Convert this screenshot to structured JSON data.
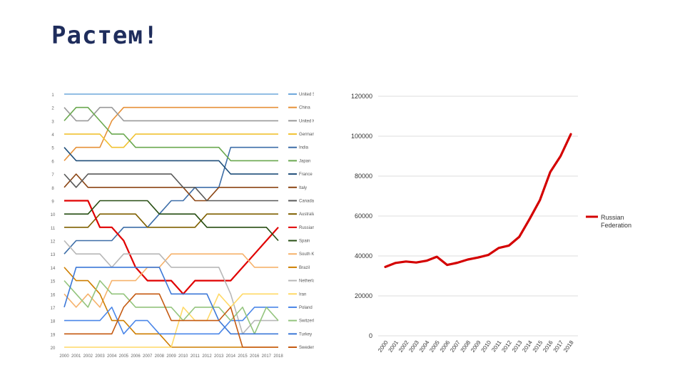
{
  "slide": {
    "title": "Растем!"
  },
  "chart_data": [
    {
      "type": "line",
      "title": "",
      "chart_subtype": "bump chart (rank by year)",
      "x": [
        "2000",
        "2001",
        "2002",
        "2003",
        "2004",
        "2005",
        "2006",
        "2007",
        "2008",
        "2009",
        "2010",
        "2011",
        "2012",
        "2013",
        "2014",
        "2015",
        "2016",
        "2017",
        "2018"
      ],
      "rank_labels": [
        "1",
        "2",
        "3",
        "4",
        "5",
        "6",
        "7",
        "8",
        "9",
        "10",
        "11",
        "12",
        "13",
        "14",
        "15",
        "16",
        "17",
        "18",
        "19",
        "20"
      ],
      "ylim": [
        1,
        20
      ],
      "series": [
        {
          "name": "United States",
          "color": "#6fa8dc",
          "values": [
            1,
            1,
            1,
            1,
            1,
            1,
            1,
            1,
            1,
            1,
            1,
            1,
            1,
            1,
            1,
            1,
            1,
            1,
            1
          ]
        },
        {
          "name": "China",
          "color": "#e69138",
          "values": [
            6,
            5,
            5,
            5,
            3,
            2,
            2,
            2,
            2,
            2,
            2,
            2,
            2,
            2,
            2,
            2,
            2,
            2,
            2
          ]
        },
        {
          "name": "United Kingdom",
          "color": "#999999",
          "values": [
            2,
            3,
            3,
            2,
            2,
            3,
            3,
            3,
            3,
            3,
            3,
            3,
            3,
            3,
            3,
            3,
            3,
            3,
            3
          ]
        },
        {
          "name": "Germany",
          "color": "#f1c232",
          "values": [
            4,
            4,
            4,
            4,
            5,
            5,
            4,
            4,
            4,
            4,
            4,
            4,
            4,
            4,
            4,
            4,
            4,
            4,
            4
          ]
        },
        {
          "name": "India",
          "color": "#3d6ea8",
          "values": [
            13,
            12,
            12,
            12,
            12,
            11,
            11,
            11,
            10,
            9,
            9,
            8,
            8,
            8,
            5,
            5,
            5,
            5,
            5
          ]
        },
        {
          "name": "Japan",
          "color": "#6aa84f",
          "values": [
            3,
            2,
            2,
            3,
            4,
            4,
            5,
            5,
            5,
            5,
            5,
            5,
            5,
            5,
            6,
            6,
            6,
            6,
            6
          ]
        },
        {
          "name": "France",
          "color": "#1f4e79",
          "values": [
            5,
            6,
            6,
            6,
            6,
            6,
            6,
            6,
            6,
            6,
            6,
            6,
            6,
            6,
            7,
            7,
            7,
            7,
            7
          ]
        },
        {
          "name": "Italy",
          "color": "#8b4513",
          "values": [
            8,
            7,
            8,
            8,
            8,
            8,
            8,
            8,
            8,
            8,
            8,
            9,
            9,
            8,
            8,
            8,
            8,
            8,
            8
          ]
        },
        {
          "name": "Canada",
          "color": "#595959",
          "values": [
            7,
            8,
            7,
            7,
            7,
            7,
            7,
            7,
            7,
            7,
            8,
            8,
            9,
            9,
            9,
            9,
            9,
            9,
            9
          ]
        },
        {
          "name": "Australia",
          "color": "#7f6000",
          "values": [
            11,
            11,
            11,
            10,
            10,
            10,
            10,
            11,
            11,
            11,
            11,
            11,
            10,
            10,
            10,
            10,
            10,
            10,
            10
          ]
        },
        {
          "name": "Russian Federation",
          "color": "#e00000",
          "values": [
            9,
            9,
            9,
            11,
            11,
            12,
            14,
            15,
            15,
            15,
            16,
            15,
            15,
            15,
            15,
            14,
            13,
            12,
            11
          ]
        },
        {
          "name": "Spain",
          "color": "#274e13",
          "values": [
            10,
            10,
            10,
            9,
            9,
            9,
            9,
            9,
            10,
            10,
            10,
            10,
            11,
            11,
            11,
            11,
            11,
            11,
            12
          ]
        },
        {
          "name": "South Korea",
          "color": "#f6b26b",
          "values": [
            16,
            17,
            16,
            17,
            15,
            15,
            15,
            14,
            14,
            13,
            13,
            13,
            13,
            13,
            13,
            13,
            14,
            14,
            14
          ]
        },
        {
          "name": "Brazil",
          "color": "#ce7e00",
          "values": [
            14,
            15,
            15,
            16,
            18,
            18,
            19,
            19,
            19,
            20,
            20,
            20,
            20,
            20,
            20,
            20,
            20,
            20,
            20
          ]
        },
        {
          "name": "Netherlands",
          "color": "#b7b7b7",
          "values": [
            12,
            13,
            13,
            13,
            14,
            13,
            13,
            13,
            13,
            14,
            14,
            14,
            14,
            14,
            16,
            19,
            18,
            18,
            18
          ]
        },
        {
          "name": "Iran",
          "color": "#ffd966",
          "values": [
            20,
            20,
            20,
            20,
            20,
            20,
            20,
            20,
            20,
            20,
            17,
            18,
            18,
            16,
            17,
            16,
            16,
            16,
            16
          ]
        },
        {
          "name": "Poland",
          "color": "#4a86e8",
          "values": [
            18,
            18,
            18,
            18,
            17,
            19,
            18,
            18,
            19,
            19,
            19,
            19,
            19,
            19,
            18,
            18,
            17,
            17,
            17
          ]
        },
        {
          "name": "Switzerland",
          "color": "#93c47d",
          "values": [
            15,
            16,
            17,
            15,
            16,
            16,
            17,
            17,
            17,
            17,
            18,
            17,
            17,
            17,
            18,
            17,
            19,
            17,
            18
          ]
        },
        {
          "name": "Turkey",
          "color": "#3c78d8",
          "values": [
            17,
            14,
            14,
            14,
            14,
            14,
            14,
            14,
            14,
            16,
            16,
            16,
            16,
            18,
            19,
            19,
            19,
            19,
            19
          ]
        },
        {
          "name": "Sweden",
          "color": "#c55a11",
          "values": [
            19,
            19,
            19,
            19,
            19,
            17,
            16,
            16,
            16,
            18,
            18,
            18,
            18,
            18,
            17,
            20,
            20,
            20,
            20
          ]
        }
      ]
    },
    {
      "type": "line",
      "title": "",
      "x": [
        "2000",
        "2001",
        "2002",
        "2003",
        "2004",
        "2005",
        "2006",
        "2007",
        "2008",
        "2009",
        "2010",
        "2011",
        "2012",
        "2013",
        "2014",
        "2015",
        "2016",
        "2017",
        "2018"
      ],
      "y_ticks": [
        "0",
        "20000",
        "40000",
        "60000",
        "80000",
        "100000",
        "120000"
      ],
      "ylim": [
        0,
        120000
      ],
      "grid": true,
      "legend_position": "right",
      "series": [
        {
          "name": "Russian Federation",
          "color": "#d40000",
          "values": [
            34500,
            36500,
            37200,
            36700,
            37600,
            39600,
            35500,
            36600,
            38200,
            39200,
            40500,
            44000,
            45200,
            49600,
            58500,
            68000,
            82000,
            90000,
            101000
          ]
        }
      ]
    }
  ],
  "bump_legend_extra": ""
}
